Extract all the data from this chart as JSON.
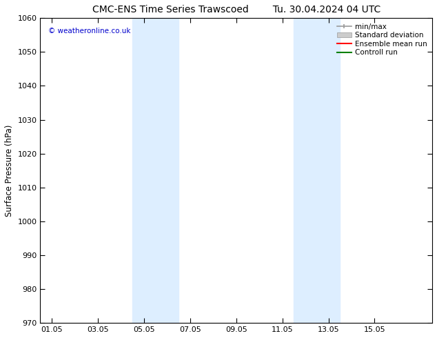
{
  "title": "CMC-ENS Time Series Trawscoed",
  "title2": "Tu. 30.04.2024 04 UTC",
  "ylabel": "Surface Pressure (hPa)",
  "ylim": [
    970,
    1060
  ],
  "yticks": [
    970,
    980,
    990,
    1000,
    1010,
    1020,
    1030,
    1040,
    1050,
    1060
  ],
  "xlim_start": -0.5,
  "xlim_end": 16.5,
  "xtick_labels": [
    "01.05",
    "03.05",
    "05.05",
    "07.05",
    "09.05",
    "11.05",
    "13.05",
    "15.05"
  ],
  "xtick_positions": [
    0,
    2,
    4,
    6,
    8,
    10,
    12,
    14
  ],
  "shaded_bands": [
    {
      "xmin": 3.5,
      "xmax": 5.5,
      "color": "#ddeeff"
    },
    {
      "xmin": 10.5,
      "xmax": 12.5,
      "color": "#ddeeff"
    }
  ],
  "watermark": "© weatheronline.co.uk",
  "watermark_color": "#0000cc",
  "legend_entries": [
    {
      "label": "min/max",
      "color": "#999999",
      "lw": 1.2,
      "style": "solid",
      "type": "errorbar"
    },
    {
      "label": "Standard deviation",
      "color": "#cccccc",
      "lw": 6,
      "style": "solid",
      "type": "box"
    },
    {
      "label": "Ensemble mean run",
      "color": "#ff0000",
      "lw": 1.5,
      "style": "solid",
      "type": "line"
    },
    {
      "label": "Controll run",
      "color": "#008000",
      "lw": 1.5,
      "style": "solid",
      "type": "line"
    }
  ],
  "bg_color": "#ffffff",
  "title_fontsize": 10,
  "label_fontsize": 8.5,
  "tick_fontsize": 8,
  "legend_fontsize": 7.5
}
